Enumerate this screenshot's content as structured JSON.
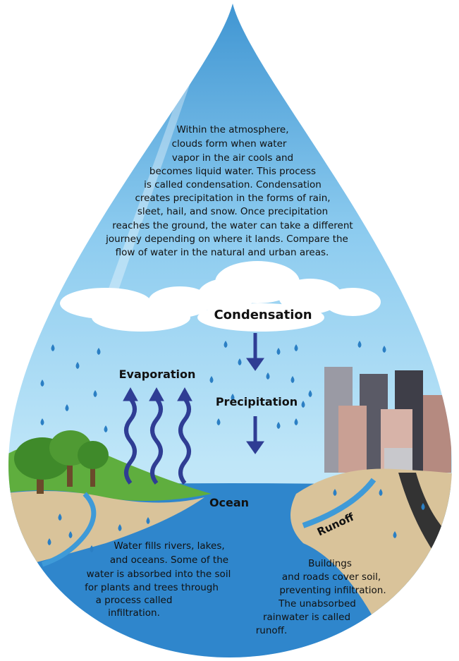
{
  "intro": {
    "lines": [
      "Within the atmosphere,",
      "clouds form when water",
      "vapor in the air cools and",
      "becomes liquid water. This process",
      "is called condensation. Condensation",
      "creates precipitation in the forms of rain,",
      "sleet, hail, and snow. Once precipitation",
      "reaches the ground, the water can take a different",
      "journey depending on where it lands. Compare  the",
      "flow of water in the natural and urban areas."
    ]
  },
  "labels": {
    "condensation": "Condensation",
    "evaporation": "Evaporation",
    "precipitation": "Precipitation",
    "ocean": "Ocean",
    "runoff": "Runoff"
  },
  "natural": {
    "lines": [
      "Water fills rivers, lakes,",
      "and oceans. Some of the",
      "water is absorbed into the soil",
      "for plants and trees through",
      "a process called",
      "infiltration."
    ]
  },
  "urban": {
    "lines": [
      "Buildings",
      "and roads cover soil,",
      "preventing infiltration.",
      "The unabsorbed",
      "rainwater is called",
      "runoff."
    ]
  }
}
